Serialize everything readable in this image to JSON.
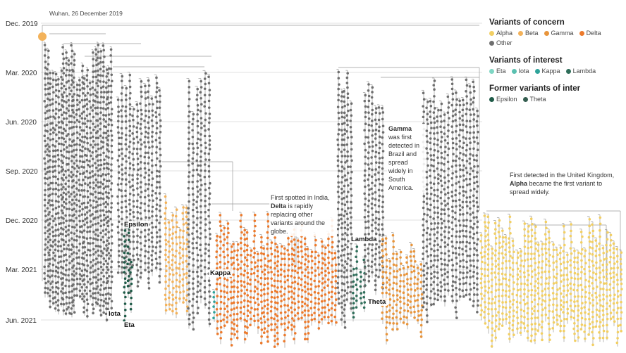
{
  "root_note": "Wuhan, 26 December 2019",
  "time_axis": [
    "Dec. 2019",
    "Mar. 2020",
    "Jun. 2020",
    "Sep. 2020",
    "Dec. 2020",
    "Mar. 2021",
    "Jun. 2021"
  ],
  "legend": {
    "concern_heading": "Variants of concern",
    "concern": [
      {
        "label": "Alpha",
        "color": "#f2cf63"
      },
      {
        "label": "Beta",
        "color": "#f3b25a"
      },
      {
        "label": "Gamma",
        "color": "#e8953c"
      },
      {
        "label": "Delta",
        "color": "#ec7a2c"
      },
      {
        "label": "Other",
        "color": "#6e6e6e"
      }
    ],
    "interest_heading": "Variants of interest",
    "interest": [
      {
        "label": "Eta",
        "color": "#7fd6c4"
      },
      {
        "label": "Iota",
        "color": "#5ac0b0"
      },
      {
        "label": "Kappa",
        "color": "#2ea39a"
      },
      {
        "label": "Lambda",
        "color": "#2f6e5a"
      }
    ],
    "former_heading": "Former variants of inter",
    "former": [
      {
        "label": "Epsilon",
        "color": "#1f5b48"
      },
      {
        "label": "Theta",
        "color": "#355e50"
      }
    ]
  },
  "annotations": {
    "delta_text": "First spotted in India,",
    "delta_bold": "Delta",
    "delta_rest": "is rapidly replacing other variants around the globe.",
    "gamma_bold": "Gamma",
    "gamma_rest": "was first detected in Brazil and spread widely in South America.",
    "alpha_text": "First detected in the United Kingdom,",
    "alpha_bold": "Alpha",
    "alpha_rest": "became the first variant to spread widely."
  },
  "clade_tags": {
    "epsilon": "Epsilon",
    "iota": "Iota",
    "eta": "Eta",
    "kappa": "Kappa",
    "lambda": "Lambda",
    "theta": "Theta"
  }
}
